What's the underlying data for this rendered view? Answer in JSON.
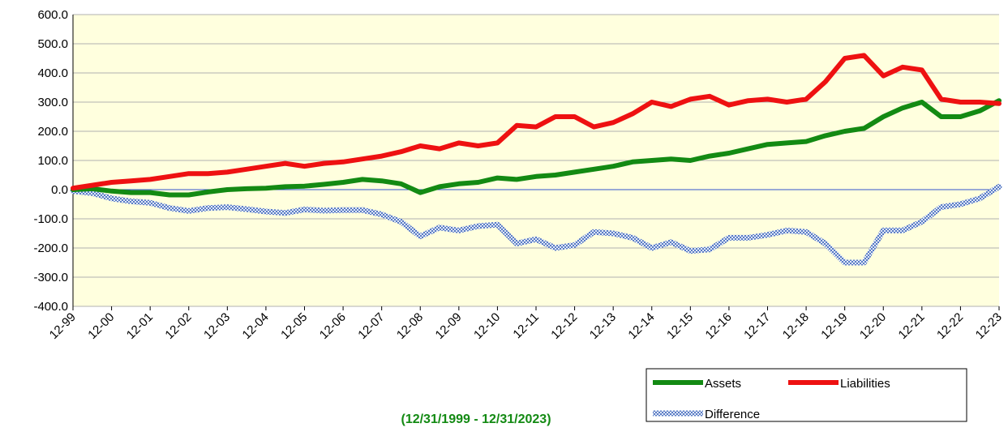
{
  "chart_data": {
    "type": "line",
    "subtitle": "(12/31/1999 - 12/31/2023)",
    "categories": [
      "12-99",
      null,
      "12-00",
      null,
      "12-01",
      null,
      "12-02",
      null,
      "12-03",
      null,
      "12-04",
      null,
      "12-05",
      null,
      "12-06",
      null,
      "12-07",
      null,
      "12-08",
      null,
      "12-09",
      null,
      "12-10",
      null,
      "12-11",
      null,
      "12-12",
      null,
      "12-13",
      null,
      "12-14",
      null,
      "12-15",
      null,
      "12-16",
      null,
      "12-17",
      null,
      "12-18",
      null,
      "12-19",
      null,
      "12-20",
      null,
      "12-21",
      null,
      "12-22",
      null,
      "12-23"
    ],
    "series": [
      {
        "name": "Assets",
        "color": "#138a13",
        "values": [
          0,
          3,
          -5,
          -10,
          -10,
          -18,
          -18,
          -8,
          0,
          3,
          5,
          10,
          12,
          18,
          25,
          35,
          30,
          20,
          -10,
          10,
          20,
          25,
          40,
          35,
          45,
          50,
          60,
          70,
          80,
          95,
          100,
          105,
          100,
          115,
          125,
          140,
          155,
          160,
          165,
          185,
          200,
          210,
          250,
          280,
          300,
          250,
          250,
          270,
          305
        ]
      },
      {
        "name": "Liabilities",
        "color": "#ee1111",
        "values": [
          5,
          15,
          25,
          30,
          35,
          45,
          55,
          55,
          60,
          70,
          80,
          90,
          80,
          90,
          95,
          105,
          115,
          130,
          150,
          140,
          160,
          150,
          160,
          220,
          215,
          250,
          250,
          215,
          230,
          260,
          300,
          285,
          310,
          320,
          290,
          305,
          310,
          300,
          310,
          370,
          450,
          460,
          390,
          420,
          410,
          310,
          300,
          300,
          295
        ]
      },
      {
        "name": "Difference",
        "color": "#8fa8dc",
        "values": [
          -5,
          -12,
          -30,
          -40,
          -45,
          -63,
          -73,
          -63,
          -60,
          -67,
          -75,
          -80,
          -68,
          -72,
          -70,
          -70,
          -85,
          -110,
          -160,
          -130,
          -140,
          -125,
          -120,
          -185,
          -170,
          -200,
          -190,
          -145,
          -150,
          -165,
          -200,
          -180,
          -210,
          -205,
          -165,
          -165,
          -155,
          -140,
          -145,
          -185,
          -250,
          -250,
          -140,
          -140,
          -110,
          -60,
          -50,
          -30,
          10
        ]
      }
    ],
    "ylim": [
      -400,
      600
    ],
    "yticks": [
      {
        "value": -400,
        "label": "-400.0"
      },
      {
        "value": -300,
        "label": "-300.0"
      },
      {
        "value": -200,
        "label": "-200.0"
      },
      {
        "value": -100,
        "label": "-100.0"
      },
      {
        "value": 0,
        "label": "0.0"
      },
      {
        "value": 100,
        "label": "100.0"
      },
      {
        "value": 200,
        "label": "200.0"
      },
      {
        "value": 300,
        "label": "300.0"
      },
      {
        "value": 400,
        "label": "400.0"
      },
      {
        "value": 500,
        "label": "500.0"
      },
      {
        "value": 600,
        "label": "600.0"
      }
    ],
    "grid": true
  }
}
